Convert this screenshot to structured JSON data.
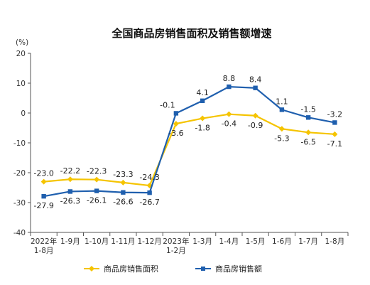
{
  "chart_data": {
    "type": "line",
    "title": "全国商品房销售面积及销售额增速",
    "ylabel": "(%)",
    "ylim": [
      -40,
      20
    ],
    "yticks": [
      20,
      10,
      0,
      -10,
      -20,
      -30,
      -40
    ],
    "grid": false,
    "legend_position": "bottom",
    "categories": [
      [
        "2022年",
        "1-8月"
      ],
      [
        "1-9月"
      ],
      [
        "1-10月"
      ],
      [
        "1-11月"
      ],
      [
        "1-12月"
      ],
      [
        "2023年",
        "1-2月"
      ],
      [
        "1-3月"
      ],
      [
        "1-4月"
      ],
      [
        "1-5月"
      ],
      [
        "1-6月"
      ],
      [
        "1-7月"
      ],
      [
        "1-8月"
      ]
    ],
    "series": [
      {
        "name": "商品房销售面积",
        "color": "#F5C400",
        "marker": "diamond",
        "values": [
          -23.0,
          -22.2,
          -22.3,
          -23.3,
          -24.3,
          -3.6,
          -1.8,
          -0.4,
          -0.9,
          -5.3,
          -6.5,
          -7.1
        ],
        "labels": [
          "-23.0",
          "-22.2",
          "-22.3",
          "-23.3",
          "-24.3",
          "-3.6",
          "-1.8",
          "-0.4",
          "-0.9",
          "-5.3",
          "-6.5",
          "-7.1"
        ]
      },
      {
        "name": "商品房销售额",
        "color": "#1F5FAE",
        "marker": "square",
        "values": [
          -27.9,
          -26.3,
          -26.1,
          -26.6,
          -26.7,
          -0.1,
          4.1,
          8.8,
          8.4,
          1.1,
          -1.5,
          -3.2
        ],
        "labels": [
          "-27.9",
          "-26.3",
          "-26.1",
          "-26.6",
          "-26.7",
          "-0.1",
          "4.1",
          "8.8",
          "8.4",
          "1.1",
          "-1.5",
          "-3.2"
        ]
      }
    ]
  }
}
